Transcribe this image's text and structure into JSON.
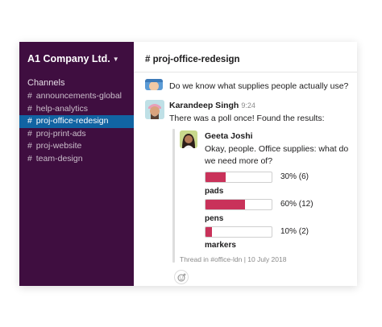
{
  "workspace": {
    "name": "A1 Company Ltd."
  },
  "sidebar": {
    "section_label": "Channels",
    "channels": [
      {
        "label": "announcements-global",
        "active": false
      },
      {
        "label": "help-analytics",
        "active": false
      },
      {
        "label": "proj-office-redesign",
        "active": true
      },
      {
        "label": "proj-print-ads",
        "active": false
      },
      {
        "label": "proj-website",
        "active": false
      },
      {
        "label": "team-design",
        "active": false
      }
    ]
  },
  "header": {
    "channel_title": "# proj-office-redesign"
  },
  "messages": {
    "m1": {
      "text": "Do we know what supplies people actually use?"
    },
    "m2": {
      "author": "Karandeep Singh",
      "time": "9:24",
      "text": "There was a poll once! Found the results:"
    }
  },
  "shared": {
    "author": "Geeta Joshi",
    "line1": "Okay, people. Office supplies: what do",
    "line2": "we need more of?",
    "poll": [
      {
        "option": "pads",
        "result": "30% (6)",
        "fraction": 0.3
      },
      {
        "option": "pens",
        "result": "60% (12)",
        "fraction": 0.6
      },
      {
        "option": "markers",
        "result": "10% (2)",
        "fraction": 0.1
      }
    ],
    "footer": "Thread in #office-ldn | 10 July 2018"
  },
  "icons": {
    "chevron": "chevron-down-icon",
    "reaction": "add-reaction-icon"
  },
  "colors": {
    "sidebar_bg": "#3f0e40",
    "active_channel": "#1164a3",
    "poll_bar": "#c9325a"
  }
}
